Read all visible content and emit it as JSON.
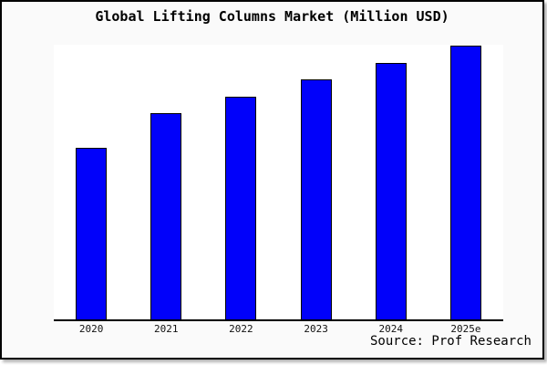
{
  "title": "Global Lifting Columns Market (Million USD)",
  "source": "Source: Prof Research",
  "colors": {
    "bar_fill": "#0101fa",
    "bar_border": "#000000",
    "frame_background": "#fafafa",
    "plot_background": "#ffffff",
    "axis": "#000000",
    "text": "#000000"
  },
  "chart_data": {
    "type": "bar",
    "title": "Global Lifting Columns Market (Million USD)",
    "categories": [
      "2020",
      "2021",
      "2022",
      "2023",
      "2024",
      "2025e"
    ],
    "values": [
      62.7,
      75.3,
      81.3,
      87.6,
      93.8,
      100
    ],
    "values_note": "relative scale estimated from bar heights, 2025e = 100; chart shows no y-axis tick labels",
    "xlabel": "",
    "ylabel": "",
    "ylim": [
      0,
      100.3
    ],
    "grid": false,
    "legend": false,
    "y_axis_shown": false,
    "bar_color": "#0101fa",
    "source_annotation": "Source: Prof Research"
  }
}
